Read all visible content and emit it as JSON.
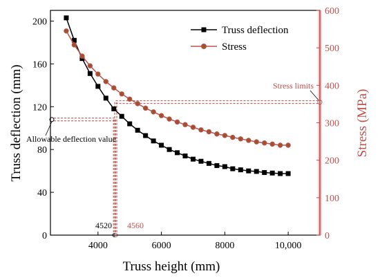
{
  "chart_data": {
    "type": "line",
    "xlabel": "Truss height (mm)",
    "ylabel": "Truss deflection (mm)",
    "y2label": "Stress (MPa)",
    "xlim": [
      2500,
      11000
    ],
    "ylim": [
      0,
      210
    ],
    "y2lim": [
      0,
      600
    ],
    "xticks": [
      4000,
      6000,
      8000,
      10000
    ],
    "xtick_labels": [
      "4000",
      "6000",
      "8000",
      "10,000"
    ],
    "yticks": [
      0,
      40,
      80,
      120,
      160,
      200
    ],
    "y2ticks": [
      0,
      100,
      200,
      300,
      400,
      500,
      600
    ],
    "legend_position": "top-right",
    "colors": {
      "deflection": "#000000",
      "stress": "#c0504d",
      "stress_axis": "#c0504d",
      "highlight": "#f9d3d3",
      "guide": "#a52a2a"
    },
    "series": [
      {
        "name": "Truss deflection",
        "axis": "left",
        "marker": "square",
        "x": [
          3000,
          3250,
          3500,
          3750,
          4000,
          4250,
          4500,
          4750,
          5000,
          5250,
          5500,
          5750,
          6000,
          6250,
          6500,
          6750,
          7000,
          7250,
          7500,
          7750,
          8000,
          8250,
          8500,
          8750,
          9000,
          9250,
          9500,
          9750,
          10000
        ],
        "y": [
          203,
          182,
          165,
          151,
          139,
          128,
          118,
          111,
          104,
          98,
          93,
          88,
          84,
          80,
          77,
          74,
          71,
          69,
          67,
          65,
          64,
          62,
          61,
          60,
          59.5,
          58.5,
          58,
          57.5,
          57.5
        ]
      },
      {
        "name": "Stress",
        "axis": "right",
        "marker": "circle",
        "x": [
          3000,
          3250,
          3500,
          3750,
          4000,
          4250,
          4500,
          4750,
          5000,
          5250,
          5500,
          5750,
          6000,
          6250,
          6500,
          6750,
          7000,
          7250,
          7500,
          7750,
          8000,
          8250,
          8500,
          8750,
          9000,
          9250,
          9500,
          9750,
          10000
        ],
        "y": [
          545,
          508,
          478,
          452,
          430,
          410,
          393,
          377,
          363,
          351,
          339,
          329,
          319,
          310,
          302,
          295,
          288,
          281,
          276,
          270,
          266,
          261,
          257,
          253,
          249,
          246,
          243,
          240,
          240
        ]
      }
    ],
    "annotations": {
      "allowable_label": "Allowable deflection value",
      "allowable_value": 108,
      "stress_limit_label": "Stress limits",
      "stress_limit_value": 355,
      "x_deflection_label": "4520",
      "x_deflection_value": 4520,
      "x_stress_label": "4560",
      "x_stress_value": 4560
    }
  }
}
